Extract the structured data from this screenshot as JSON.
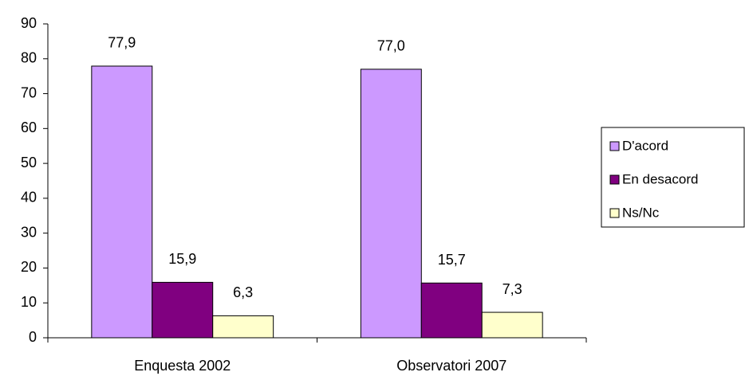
{
  "chart_data": {
    "type": "bar",
    "categories": [
      "Enquesta 2002",
      "Observatori 2007"
    ],
    "series": [
      {
        "name": "D'acord",
        "color": "#cc99ff",
        "values": [
          77.9,
          77.0
        ],
        "value_labels": [
          "77,9",
          "77,0"
        ]
      },
      {
        "name": "En desacord",
        "color": "#800080",
        "values": [
          15.9,
          15.7
        ],
        "value_labels": [
          "15,9",
          "15,7"
        ]
      },
      {
        "name": "Ns/Nc",
        "color": "#ffffcc",
        "values": [
          6.3,
          7.3
        ],
        "value_labels": [
          "6,3",
          "7,3"
        ]
      }
    ],
    "ylim": [
      0,
      90
    ],
    "yticks": [
      0,
      10,
      20,
      30,
      40,
      50,
      60,
      70,
      80,
      90
    ],
    "legend": "right"
  }
}
